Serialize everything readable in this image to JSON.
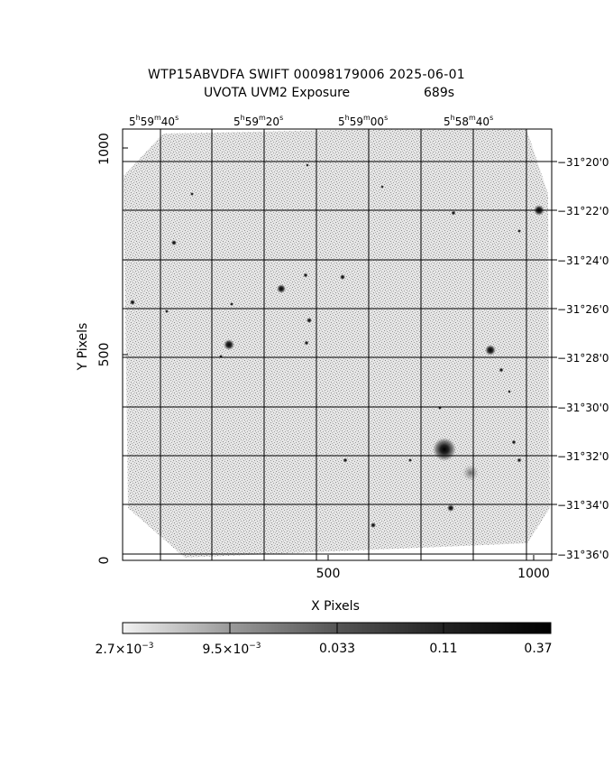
{
  "title": {
    "line1": "WTP15ABVDFA SWIFT 00098179006 2025-06-01",
    "line2": "UVOTA UVM2 Exposure",
    "exposure": "689s"
  },
  "axes": {
    "xlabel": "X Pixels",
    "ylabel": "Y Pixels",
    "x_ticks": [
      "500",
      "1000"
    ],
    "y_ticks": [
      "0",
      "500",
      "1000"
    ]
  },
  "ra_labels": [
    {
      "h": "5",
      "m": "59",
      "s": "40"
    },
    {
      "h": "5",
      "m": "59",
      "s": "20"
    },
    {
      "h": "5",
      "m": "59",
      "s": "00"
    },
    {
      "h": "5",
      "m": "58",
      "s": "40"
    }
  ],
  "dec_labels": [
    "−31°20'0",
    "−31°22'0",
    "−31°24'0",
    "−31°26'0",
    "−31°28'0",
    "−31°30'0",
    "−31°32'0",
    "−31°34'0",
    "−31°36'0"
  ],
  "colorbar": {
    "labels": [
      {
        "base": "2.7×10",
        "exp": "−3"
      },
      {
        "base": "9.5×10",
        "exp": "−3"
      },
      {
        "base": "0.033",
        "exp": ""
      },
      {
        "base": "0.11",
        "exp": ""
      },
      {
        "base": "0.37",
        "exp": ""
      }
    ]
  }
}
